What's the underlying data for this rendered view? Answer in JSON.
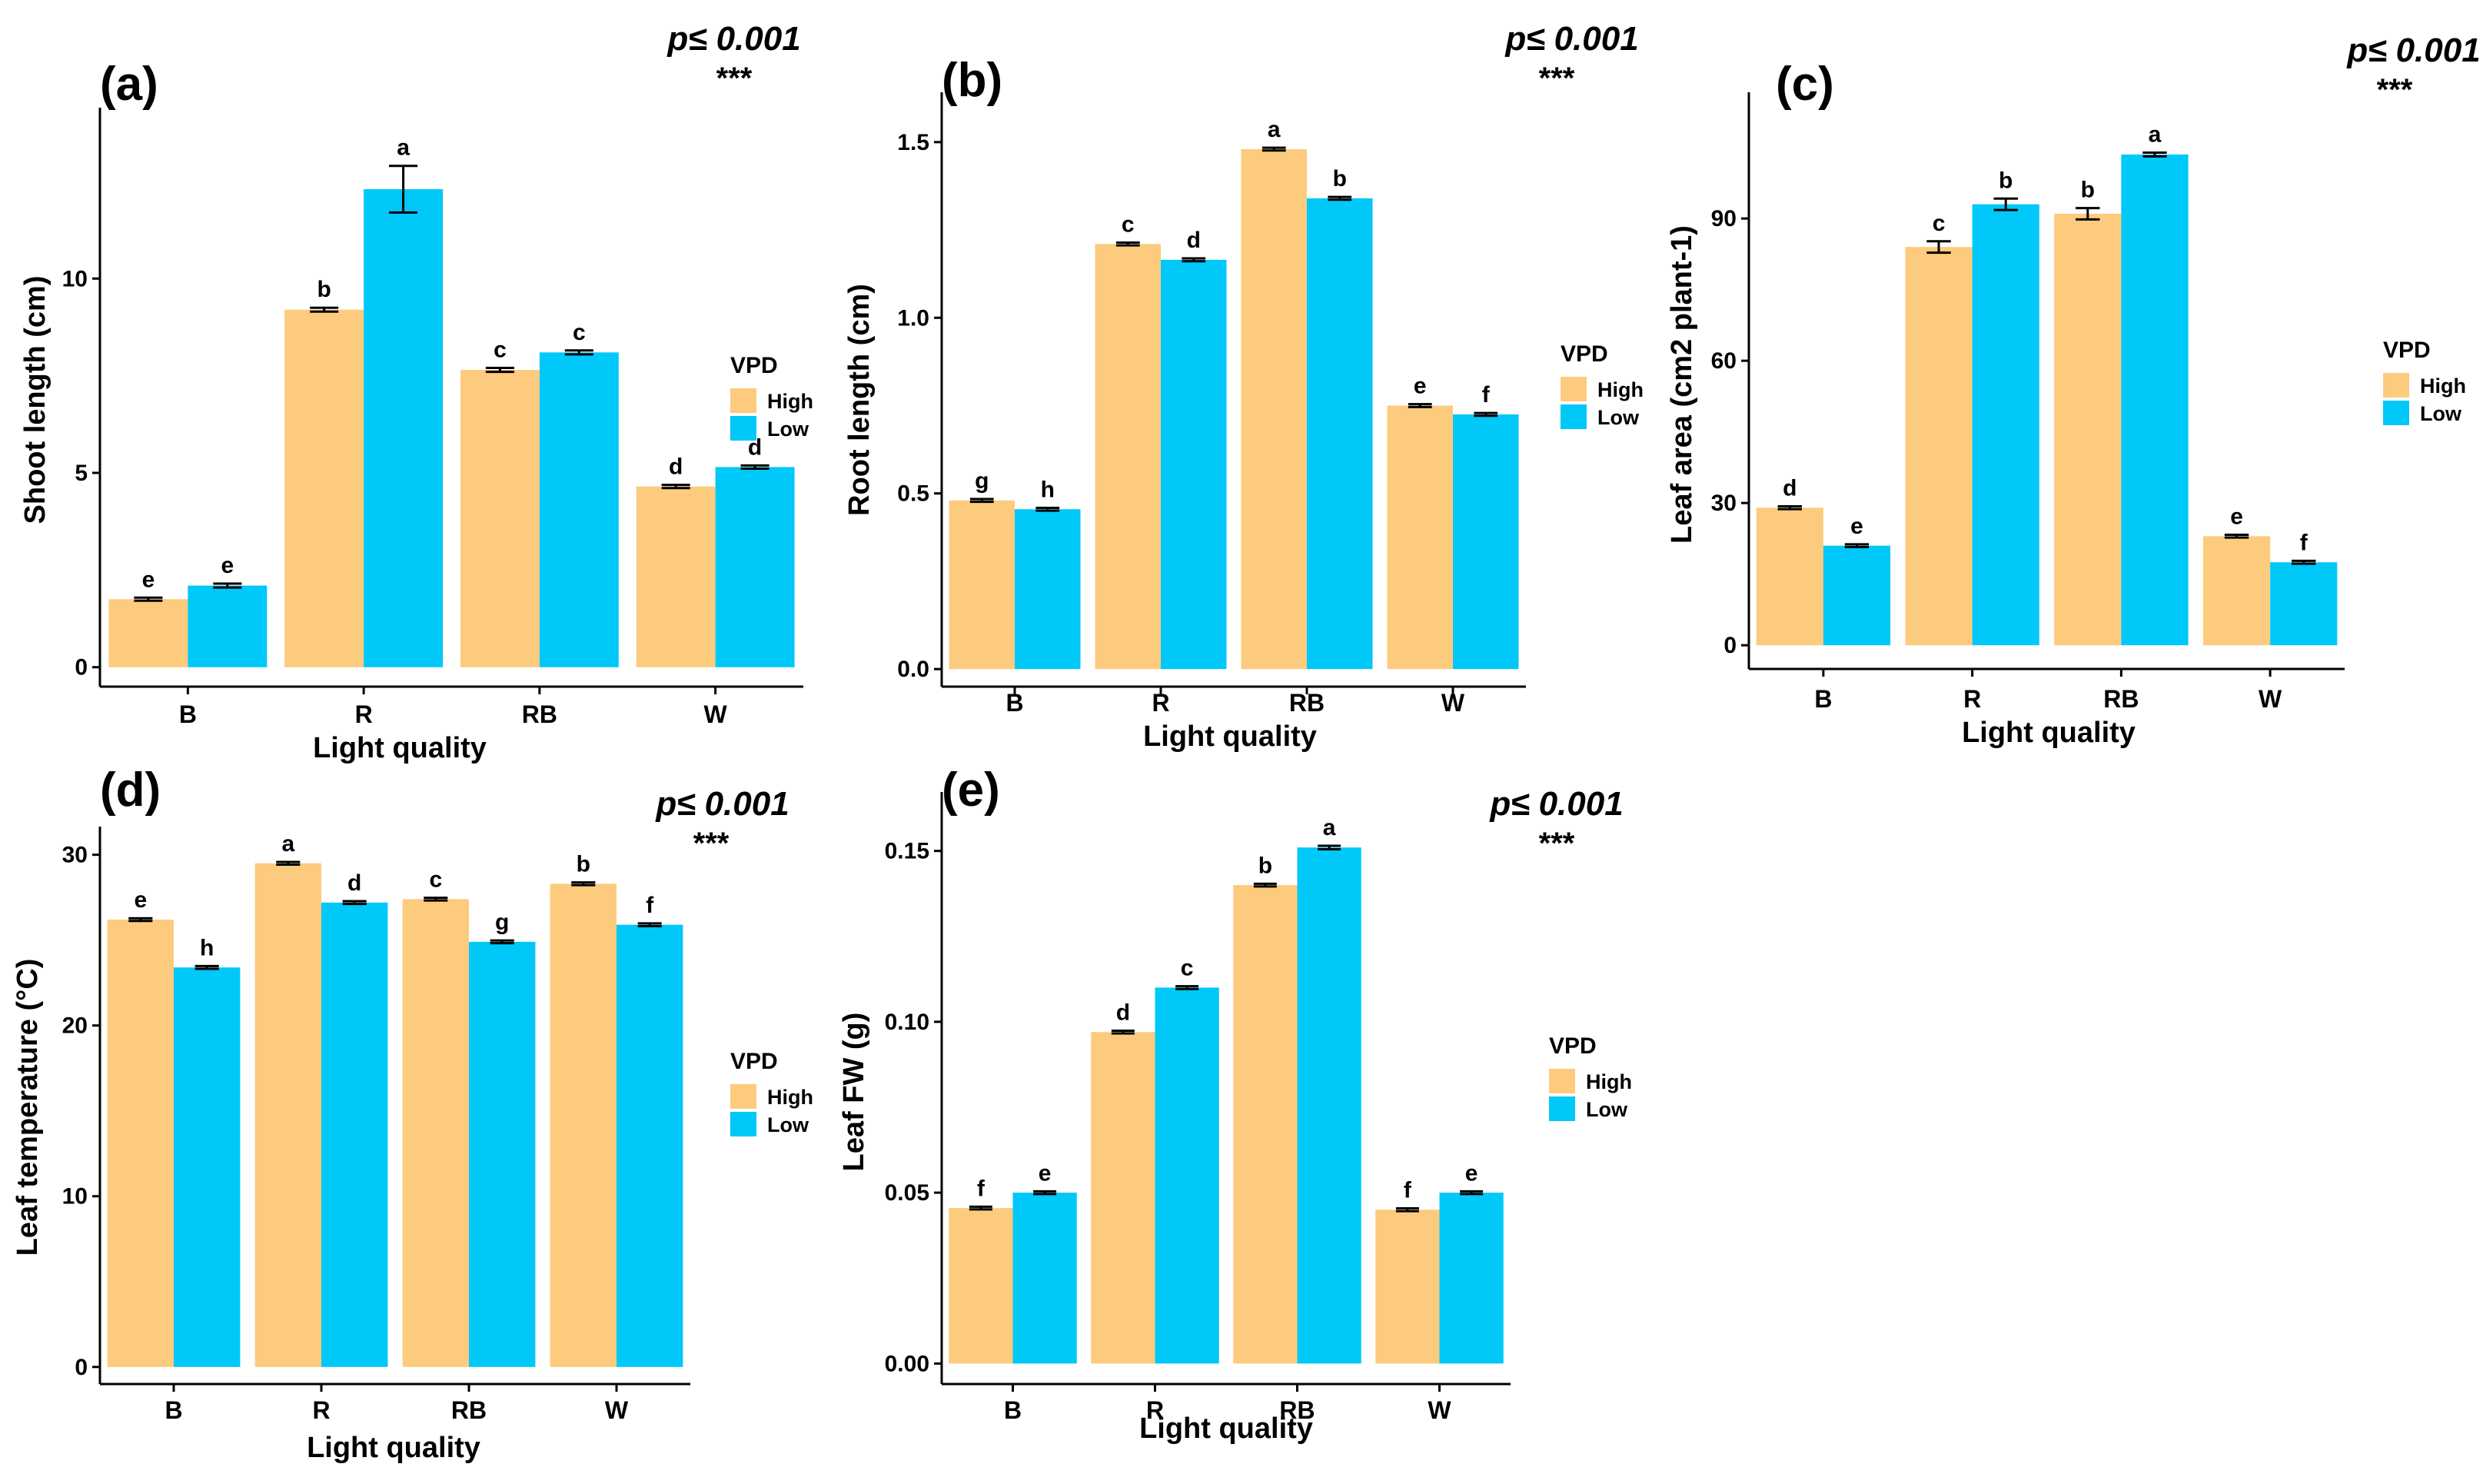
{
  "figure": {
    "legend_title": "VPD",
    "series_names": [
      "High",
      "Low"
    ],
    "colors": {
      "High": "#FDCB7E",
      "Low": "#00C8F8",
      "axis": "#000000"
    },
    "significance_p": "p≤ 0.001",
    "significance_stars": "***"
  },
  "chart_data": [
    {
      "type": "bar",
      "panel_label": "(a)",
      "title": "",
      "xlabel": "Light quality",
      "ylabel": "Shoot length (cm)",
      "categories": [
        "B",
        "R",
        "RB",
        "W"
      ],
      "ylim": [
        -0.5,
        14.2
      ],
      "yticks": [
        0,
        5,
        10
      ],
      "ytick_labels": [
        "0",
        "5",
        "10"
      ],
      "series": [
        {
          "name": "High",
          "values": [
            1.75,
            9.2,
            7.65,
            4.65
          ],
          "errors": [
            0.04,
            0.05,
            0.05,
            0.04
          ],
          "letters": [
            "e",
            "b",
            "c",
            "d"
          ]
        },
        {
          "name": "Low",
          "values": [
            2.1,
            12.3,
            8.1,
            5.15
          ],
          "errors": [
            0.05,
            0.6,
            0.05,
            0.04
          ],
          "letters": [
            "e",
            "a",
            "c",
            "d"
          ]
        }
      ],
      "significance": "p≤ 0.001",
      "stars": "***"
    },
    {
      "type": "bar",
      "panel_label": "(b)",
      "title": "",
      "xlabel": "Light quality",
      "ylabel": "Root length (cm)",
      "categories": [
        "B",
        "R",
        "RB",
        "W"
      ],
      "ylim": [
        -0.05,
        1.62
      ],
      "yticks": [
        0.0,
        0.5,
        1.0,
        1.5
      ],
      "ytick_labels": [
        "0.0",
        "0.5",
        "1.0",
        "1.5"
      ],
      "series": [
        {
          "name": "High",
          "values": [
            0.48,
            1.21,
            1.48,
            0.75
          ],
          "errors": [
            0.004,
            0.004,
            0.004,
            0.004
          ],
          "letters": [
            "g",
            "c",
            "a",
            "e"
          ]
        },
        {
          "name": "Low",
          "values": [
            0.455,
            1.165,
            1.34,
            0.725
          ],
          "errors": [
            0.004,
            0.004,
            0.004,
            0.004
          ],
          "letters": [
            "h",
            "d",
            "b",
            "f"
          ]
        }
      ],
      "significance": "p≤ 0.001",
      "stars": "***"
    },
    {
      "type": "bar",
      "panel_label": "(c)",
      "title": "",
      "xlabel": "Light quality",
      "ylabel": "Leaf  area (cm2 plant-1)",
      "categories": [
        "B",
        "R",
        "RB",
        "W"
      ],
      "ylim": [
        -5,
        115
      ],
      "yticks": [
        0,
        30,
        60,
        90
      ],
      "ytick_labels": [
        "0",
        "30",
        "60",
        "90"
      ],
      "series": [
        {
          "name": "High",
          "values": [
            29,
            84,
            91,
            23
          ],
          "errors": [
            0.3,
            1.2,
            1.2,
            0.3
          ],
          "letters": [
            "d",
            "c",
            "b",
            "e"
          ]
        },
        {
          "name": "Low",
          "values": [
            21,
            93,
            103.5,
            17.5
          ],
          "errors": [
            0.3,
            1.2,
            0.4,
            0.3
          ],
          "letters": [
            "e",
            "b",
            "a",
            "f"
          ]
        }
      ],
      "significance": "p≤ 0.001",
      "stars": "***"
    },
    {
      "type": "bar",
      "panel_label": "(d)",
      "title": "",
      "xlabel": "Light quality",
      "ylabel": "Leaf temperature (°C)",
      "categories": [
        "B",
        "R",
        "RB",
        "W"
      ],
      "ylim": [
        -1,
        31.2
      ],
      "yticks": [
        0,
        10,
        20,
        30
      ],
      "ytick_labels": [
        "0",
        "10",
        "20",
        "30"
      ],
      "series": [
        {
          "name": "High",
          "values": [
            26.2,
            29.5,
            27.4,
            28.3
          ],
          "errors": [
            0.08,
            0.08,
            0.08,
            0.08
          ],
          "letters": [
            "e",
            "a",
            "c",
            "b"
          ]
        },
        {
          "name": "Low",
          "values": [
            23.4,
            27.2,
            24.9,
            25.9
          ],
          "errors": [
            0.08,
            0.08,
            0.08,
            0.08
          ],
          "letters": [
            "h",
            "d",
            "g",
            "f"
          ]
        }
      ],
      "significance": "p≤ 0.001",
      "stars": "***"
    },
    {
      "type": "bar",
      "panel_label": "(e)",
      "title": "",
      "xlabel": "Light quality",
      "ylabel": "Leaf FW (g)",
      "categories": [
        "B",
        "R",
        "RB",
        "W"
      ],
      "ylim": [
        -0.006,
        0.165
      ],
      "yticks": [
        0.0,
        0.05,
        0.1,
        0.15
      ],
      "ytick_labels": [
        "0.00",
        "0.05",
        "0.10",
        "0.15"
      ],
      "series": [
        {
          "name": "High",
          "values": [
            0.0455,
            0.097,
            0.14,
            0.045
          ],
          "errors": [
            0.0004,
            0.0004,
            0.0004,
            0.0004
          ],
          "letters": [
            "f",
            "d",
            "b",
            "f"
          ]
        },
        {
          "name": "Low",
          "values": [
            0.05,
            0.11,
            0.151,
            0.05
          ],
          "errors": [
            0.0004,
            0.0004,
            0.0005,
            0.0004
          ],
          "letters": [
            "e",
            "c",
            "a",
            "e"
          ]
        }
      ],
      "significance": "p≤ 0.001",
      "stars": "***"
    }
  ]
}
